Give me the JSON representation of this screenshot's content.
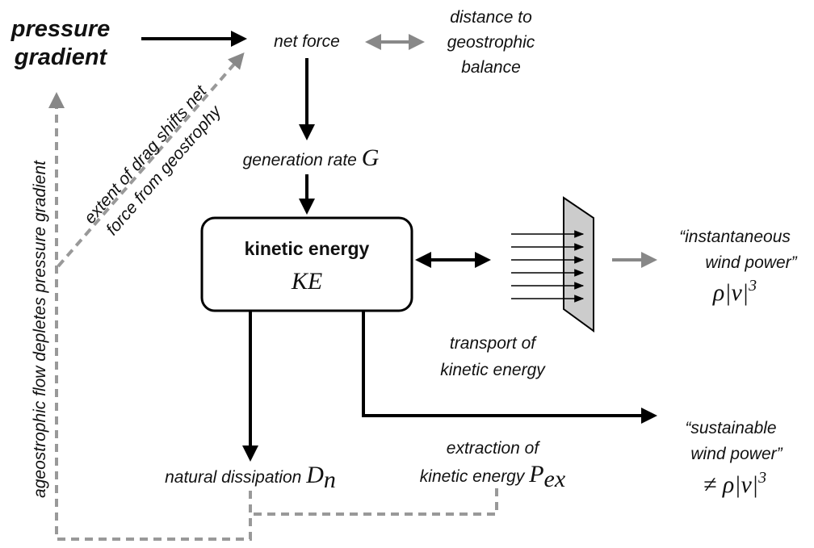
{
  "source": {
    "lines": [
      "pressure",
      "gradient"
    ]
  },
  "net_force": {
    "label": "net force"
  },
  "distance": {
    "lines": [
      "distance to",
      "geostrophic",
      "balance"
    ]
  },
  "drag_note": {
    "lines": [
      "extent of drag shifts net",
      "force from geostrophy"
    ]
  },
  "ageostrophic_note": {
    "label": "ageostrophic flow depletes pressure gradient"
  },
  "generation": {
    "label": "generation rate",
    "symbol": "G"
  },
  "kinetic_energy": {
    "label": "kinetic energy",
    "symbol": "KE"
  },
  "instantaneous": {
    "lines": [
      "“instantaneous",
      "wind power”"
    ],
    "symbol": "ρ|v|",
    "exponent": "3"
  },
  "transport": {
    "lines": [
      "transport of",
      "kinetic energy"
    ]
  },
  "sustainable": {
    "lines": [
      "“sustainable",
      "wind power”"
    ],
    "symbol": "≠ ρ|v|",
    "exponent": "3"
  },
  "dissipation": {
    "label": "natural dissipation",
    "symbol": "D",
    "subscript": "n"
  },
  "extraction": {
    "lines": [
      "extraction of",
      "kinetic energy"
    ],
    "symbol": "P",
    "subscript": "ex"
  }
}
